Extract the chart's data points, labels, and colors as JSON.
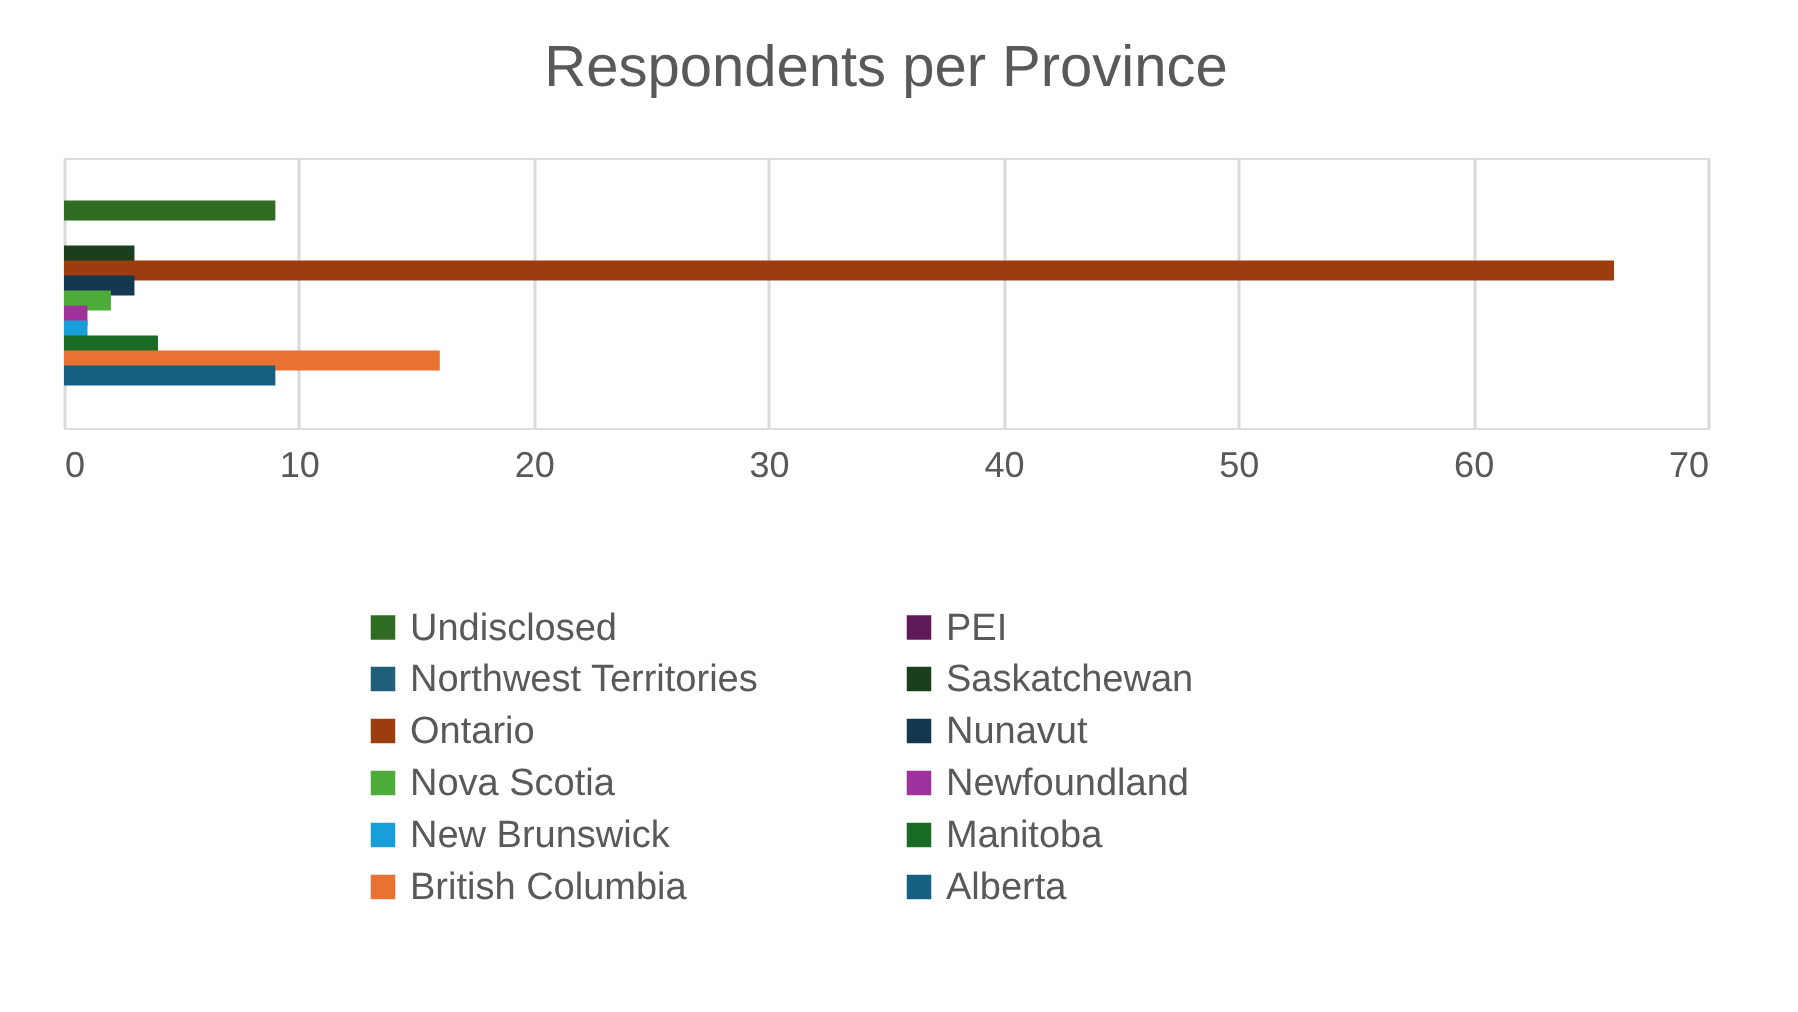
{
  "chart_data": {
    "type": "bar",
    "orientation": "horizontal",
    "title": "Respondents per Province",
    "categories": [
      null
    ],
    "series": [
      {
        "name": "Undisclosed",
        "color": "#2f6b23",
        "values": [
          9
        ]
      },
      {
        "name": "PEI",
        "color": "#5e1a5a",
        "values": [
          0
        ]
      },
      {
        "name": "Northwest Territories",
        "color": "#1f5f7a",
        "values": [
          0
        ]
      },
      {
        "name": "Saskatchewan",
        "color": "#1b3f1c",
        "values": [
          3
        ]
      },
      {
        "name": "Ontario",
        "color": "#9c3d10",
        "values": [
          66
        ]
      },
      {
        "name": "Nunavut",
        "color": "#13384f",
        "values": [
          3
        ]
      },
      {
        "name": "Nova Scotia",
        "color": "#4ead3a",
        "values": [
          2
        ]
      },
      {
        "name": "Newfoundland",
        "color": "#a0329e",
        "values": [
          1
        ]
      },
      {
        "name": "New Brunswick",
        "color": "#169fd9",
        "values": [
          1
        ]
      },
      {
        "name": "Manitoba",
        "color": "#196b24",
        "values": [
          4
        ]
      },
      {
        "name": "British Columbia",
        "color": "#e97132",
        "values": [
          16
        ]
      },
      {
        "name": "Alberta",
        "color": "#156082",
        "values": [
          9
        ]
      }
    ],
    "xlim": [
      0,
      70
    ],
    "xticks": [
      0,
      10,
      20,
      30,
      40,
      50,
      60,
      70
    ],
    "grid": true,
    "legend": "bottom"
  }
}
